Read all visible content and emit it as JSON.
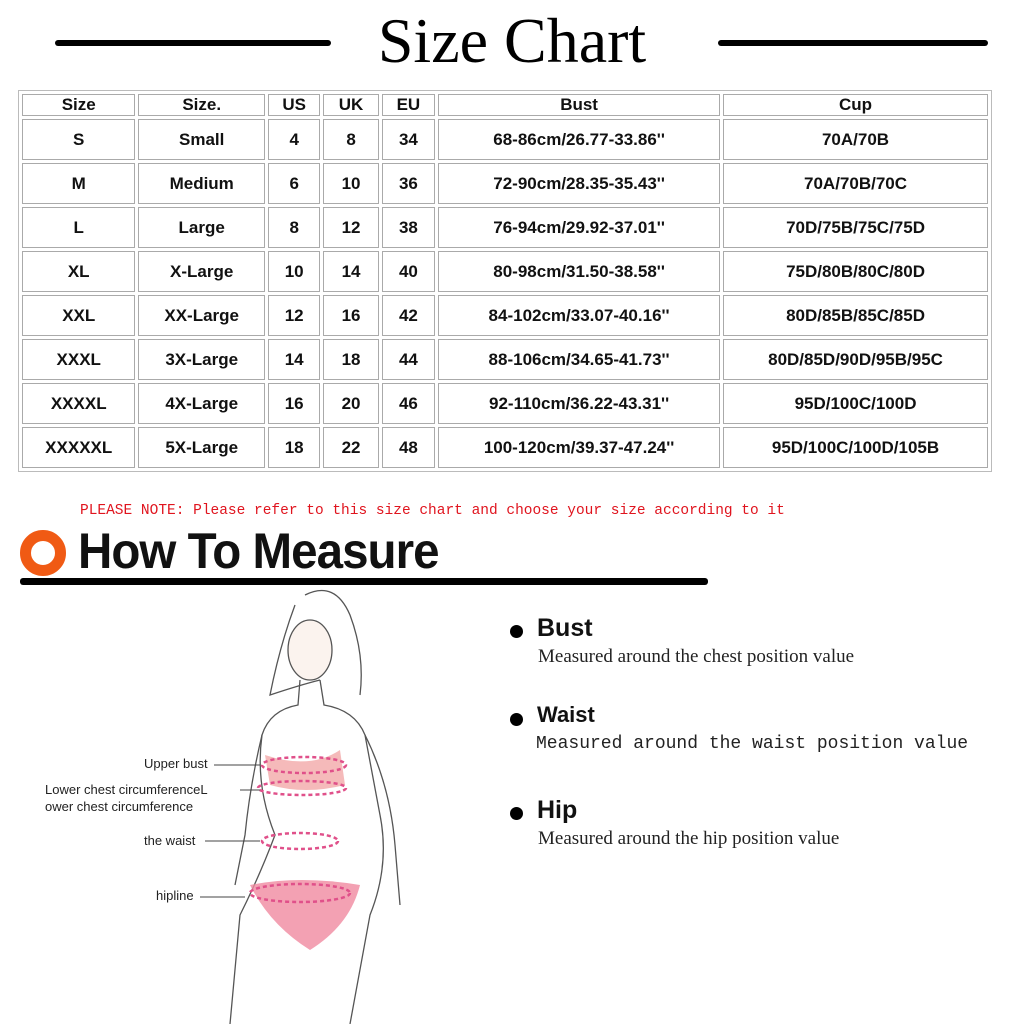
{
  "title": "Size Chart",
  "table": {
    "headers": [
      "Size",
      "Size.",
      "US",
      "UK",
      "EU",
      "Bust",
      "Cup"
    ],
    "rows": [
      [
        "S",
        "Small",
        "4",
        "8",
        "34",
        "68-86cm/26.77-33.86''",
        "70A/70B"
      ],
      [
        "M",
        "Medium",
        "6",
        "10",
        "36",
        "72-90cm/28.35-35.43''",
        "70A/70B/70C"
      ],
      [
        "L",
        "Large",
        "8",
        "12",
        "38",
        "76-94cm/29.92-37.01''",
        "70D/75B/75C/75D"
      ],
      [
        "XL",
        "X-Large",
        "10",
        "14",
        "40",
        "80-98cm/31.50-38.58''",
        "75D/80B/80C/80D"
      ],
      [
        "XXL",
        "XX-Large",
        "12",
        "16",
        "42",
        "84-102cm/33.07-40.16''",
        "80D/85B/85C/85D"
      ],
      [
        "XXXL",
        "3X-Large",
        "14",
        "18",
        "44",
        "88-106cm/34.65-41.73''",
        "80D/85D/90D/95B/95C"
      ],
      [
        "XXXXL",
        "4X-Large",
        "16",
        "20",
        "46",
        "92-110cm/36.22-43.31''",
        "95D/100C/100D"
      ],
      [
        "XXXXXL",
        "5X-Large",
        "18",
        "22",
        "48",
        "100-120cm/39.37-47.24''",
        "95D/100C/100D/105B"
      ]
    ]
  },
  "note": "PLEASE NOTE: Please refer to this size chart and choose your size according to it",
  "how_to_measure": "How To Measure",
  "figure_labels": {
    "upper_bust": "Upper bust",
    "lower_chest_1": "Lower chest circumferenceL",
    "lower_chest_2": "ower chest circumference",
    "waist": "the waist",
    "hipline": "hipline"
  },
  "measures": [
    {
      "title": "Bust",
      "desc": "Measured around the chest position value"
    },
    {
      "title": "Waist",
      "desc": "Measured around the waist position value"
    },
    {
      "title": "Hip",
      "desc": "Measured around the  hip position value"
    }
  ],
  "colors": {
    "accent": "#f05a14",
    "note": "#e0141e",
    "measure_band": "#e85a8a"
  }
}
